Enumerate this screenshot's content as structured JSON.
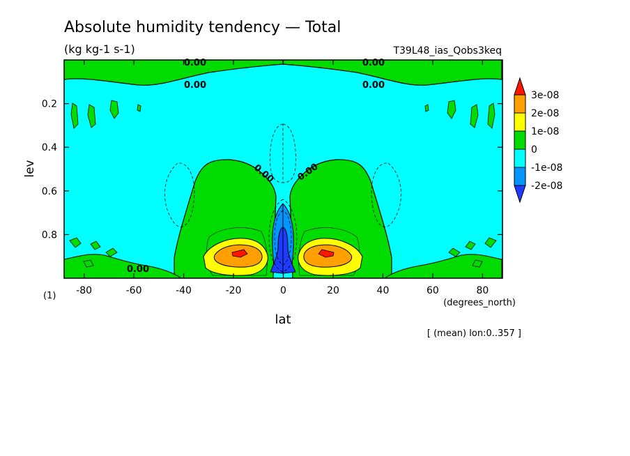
{
  "chart_data": {
    "type": "heatmap",
    "title": "Absolute humidity tendency — Total",
    "units": "(kg kg-1 s-1)",
    "run_label": "T39L48_ias_Qobs3keq",
    "xlabel": "lat",
    "x_units": "(degrees_north)",
    "ylabel": "lev",
    "y_units": "(1)",
    "footnote": "[ (mean) lon:0..357 ]",
    "xlim": [
      -88,
      88
    ],
    "ylim": [
      0.0,
      1.0
    ],
    "y_reversed": true,
    "x_ticks": [
      -80,
      -60,
      -40,
      -20,
      0,
      20,
      40,
      60,
      80
    ],
    "x_tick_labels": [
      "-80",
      "-60",
      "-40",
      "-20",
      "0",
      "20",
      "40",
      "60",
      "80"
    ],
    "y_ticks": [
      0.2,
      0.4,
      0.6,
      0.8
    ],
    "y_tick_labels": [
      "0.2",
      "0.4",
      "0.6",
      "0.8"
    ],
    "contour_labels": [
      "0.00",
      "0.00",
      "0.00",
      "0.00",
      "0.00",
      "0.00",
      "0.00"
    ],
    "colorbar": {
      "levels": [
        -2e-08,
        -1e-08,
        0,
        1e-08,
        2e-08,
        3e-08
      ],
      "labels": [
        "-2e-08",
        "-1e-08",
        "0",
        "1e-08",
        "2e-08",
        "3e-08"
      ],
      "colors": [
        "#0096ff",
        "#00ffff",
        "#00dc00",
        "#ffff00",
        "#ffa000",
        "#ff1400"
      ],
      "below_color": "#1e3cff",
      "above_color": "#ff1400"
    },
    "features": [
      {
        "name": "background",
        "value_class": "-1e-08 to 0",
        "color": "#00ffff"
      },
      {
        "name": "green lobe SH",
        "lat_range": [
          -48,
          -5
        ],
        "lev_range": [
          0.44,
          1.0
        ],
        "value_class": "0 to 1e-08"
      },
      {
        "name": "green lobe NH",
        "lat_range": [
          5,
          48
        ],
        "lev_range": [
          0.44,
          1.0
        ],
        "value_class": "0 to 1e-08"
      },
      {
        "name": "orange maximum SH",
        "lat": -18,
        "lev": 0.87,
        "value_class": "2e-08 to 3e-08"
      },
      {
        "name": "orange maximum NH",
        "lat": 18,
        "lev": 0.87,
        "value_class": "2e-08 to 3e-08"
      },
      {
        "name": "red peak SH",
        "lat": -18,
        "lev": 0.87,
        "value_class": ">3e-08"
      },
      {
        "name": "red peak NH",
        "lat": 18,
        "lev": 0.87,
        "value_class": ">3e-08"
      },
      {
        "name": "equatorial minimum",
        "lat": 0,
        "lev": 0.9,
        "value_class": "<-2e-08"
      },
      {
        "name": "upper green band",
        "lev_range": [
          0.0,
          0.12
        ],
        "value_class": "0 to 1e-08"
      }
    ]
  }
}
